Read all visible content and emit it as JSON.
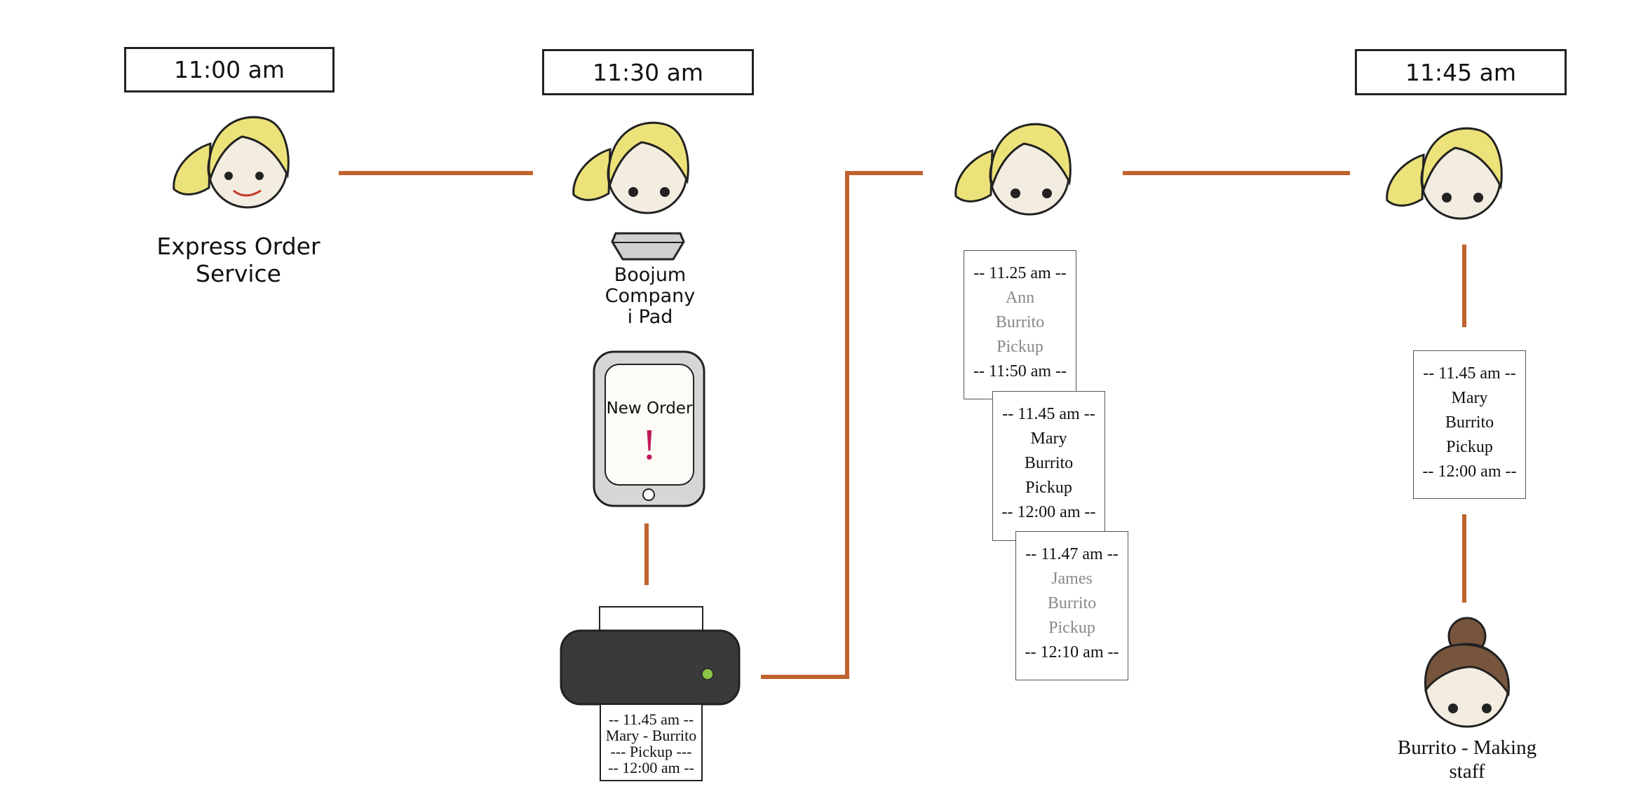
{
  "times": {
    "t1": "11:00 am",
    "t2": "11:30 am",
    "t3": "11:45 am"
  },
  "labels": {
    "express": "Express Order Service",
    "boojum_line1": "Boojum",
    "boojum_line2": "Company",
    "boojum_line3": "i Pad",
    "new_order": "New Order",
    "exclaim": "!",
    "staff_line1": "Burrito - Making",
    "staff_line2": "staff"
  },
  "printout": {
    "l1": "-- 11.45 am --",
    "l2": "Mary - Burrito",
    "l3": "--- Pickup ---",
    "l4": "-- 12:00 am --"
  },
  "tickets": [
    {
      "start": "-- 11.25 am --",
      "name": "Ann",
      "item": "Burrito",
      "type": "Pickup",
      "end": "-- 11:50 am --"
    },
    {
      "start": "-- 11.45 am --",
      "name": "Mary",
      "item": "Burrito",
      "type": "Pickup",
      "end": "-- 12:00 am --"
    },
    {
      "start": "-- 11.47 am --",
      "name": "James",
      "item": "Burrito",
      "type": "Pickup",
      "end": "-- 12:10 am --"
    },
    {
      "start": "-- 11.45 am --",
      "name": "Mary",
      "item": "Burrito",
      "type": "Pickup",
      "end": "-- 12:00 am --"
    }
  ],
  "colors": {
    "connector": "#c0622e",
    "hair": "#ece27a",
    "skin": "#f3ece0",
    "staff_hair": "#76553c",
    "printer": "#3a3a3a",
    "printer_led": "#8bc34a",
    "exclaim": "#c2185b"
  }
}
